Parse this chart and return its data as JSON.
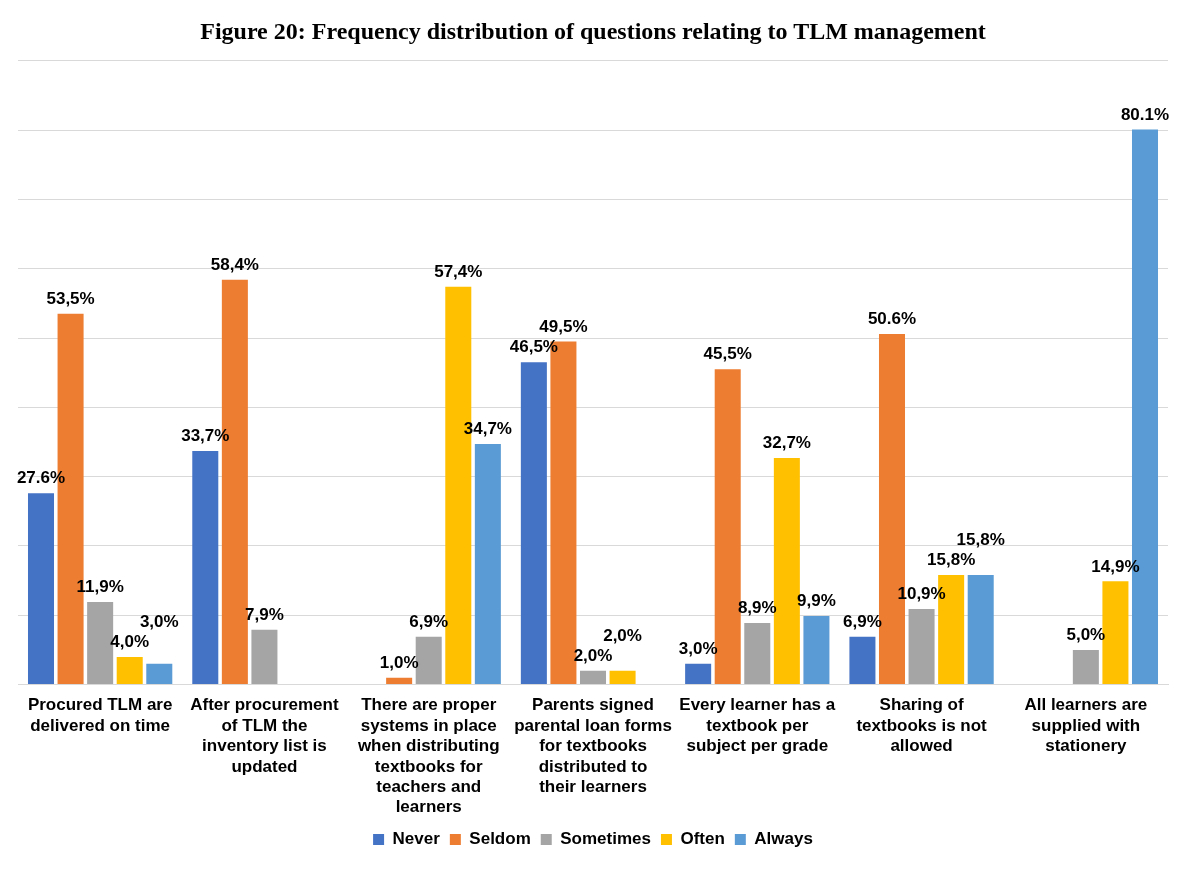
{
  "chart_data": {
    "type": "bar",
    "title": "Figure 20: Frequency distribution of questions relating to TLM management",
    "categories": [
      "Procured TLM are delivered on time",
      "After procurement of TLM the inventory list is updated",
      "There are proper systems in place when distributing textbooks for teachers and learners",
      "Parents signed parental loan forms for textbooks distributed to their learners",
      "Every learner has a textbook per subject per grade",
      "Sharing of textbooks is not allowed",
      "All learners are supplied with stationery"
    ],
    "series": [
      {
        "name": "Never",
        "color": "#4472c4",
        "values": [
          27.6,
          33.7,
          null,
          46.5,
          3.0,
          6.9,
          null
        ],
        "value_labels": [
          "27.6%",
          "33,7%",
          null,
          "46,5%",
          "3,0%",
          "6,9%",
          null
        ]
      },
      {
        "name": "Seldom",
        "color": "#ed7d31",
        "values": [
          53.5,
          58.4,
          1.0,
          49.5,
          45.5,
          50.6,
          null
        ],
        "value_labels": [
          "53,5%",
          "58,4%",
          "1,0%",
          "49,5%",
          "45,5%",
          "50.6%",
          null
        ]
      },
      {
        "name": "Sometimes",
        "color": "#a5a5a5",
        "values": [
          11.9,
          7.9,
          6.9,
          2.0,
          8.9,
          10.9,
          5.0
        ],
        "value_labels": [
          "11,9%",
          "7,9%",
          "6,9%",
          "2,0%",
          "8,9%",
          "10,9%",
          "5,0%"
        ]
      },
      {
        "name": "Often",
        "color": "#ffc000",
        "values": [
          4.0,
          null,
          57.4,
          2.0,
          32.7,
          15.8,
          14.9
        ],
        "value_labels": [
          "4,0%",
          null,
          "57,4%",
          "2,0%",
          "32,7%",
          "15,8%",
          "14,9%"
        ]
      },
      {
        "name": "Always",
        "color": "#5b9bd5",
        "values": [
          3.0,
          null,
          34.7,
          null,
          9.9,
          15.8,
          80.1
        ],
        "value_labels": [
          "3,0%",
          null,
          "34,7%",
          null,
          "9,9%",
          "15,8%",
          "80.1%"
        ]
      }
    ],
    "ylim": [
      0,
      90
    ],
    "yticks": [
      {
        "value": 0,
        "label": null
      },
      {
        "value": 10,
        "label": null
      },
      {
        "value": 20,
        "label": null
      },
      {
        "value": 30,
        "label": null
      },
      {
        "value": 40,
        "label": null
      },
      {
        "value": 50,
        "label": null
      },
      {
        "value": 60,
        "label": null
      },
      {
        "value": 70,
        "label": null
      },
      {
        "value": 80,
        "label": null
      },
      {
        "value": 90,
        "label": null
      }
    ],
    "tick_labels": "x",
    "grid": "y",
    "legend": "bottom"
  }
}
